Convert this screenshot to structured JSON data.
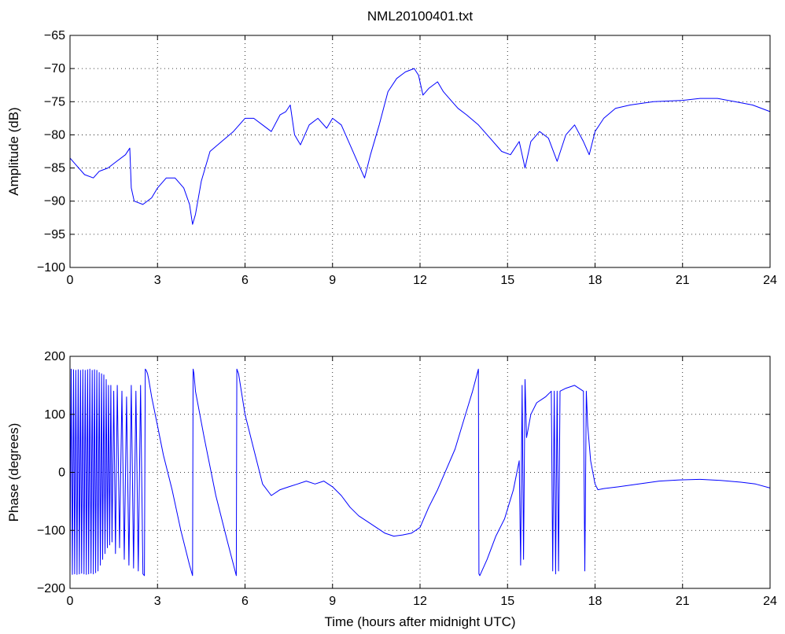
{
  "chart_data": {
    "title": "NML20100401.txt",
    "panels": [
      {
        "type": "line",
        "name": "amplitude",
        "ylabel": "Amplitude (dB)",
        "xlabel": "",
        "xlim": [
          0,
          24
        ],
        "ylim": [
          -100,
          -65
        ],
        "xticks": [
          0,
          3,
          6,
          9,
          12,
          15,
          18,
          21,
          24
        ],
        "yticks": [
          -100,
          -95,
          -90,
          -85,
          -80,
          -75,
          -70,
          -65
        ],
        "grid": true,
        "series": [
          {
            "color": "#0000ff",
            "x": [
              0,
              0.2,
              0.5,
              0.8,
              1.0,
              1.3,
              1.6,
              1.9,
              2.05,
              2.1,
              2.2,
              2.5,
              2.8,
              3.0,
              3.3,
              3.6,
              3.9,
              4.1,
              4.2,
              4.3,
              4.5,
              4.8,
              5.2,
              5.6,
              6.0,
              6.3,
              6.6,
              6.9,
              7.2,
              7.4,
              7.55,
              7.7,
              7.9,
              8.2,
              8.5,
              8.8,
              9.0,
              9.3,
              9.6,
              9.9,
              10.1,
              10.3,
              10.6,
              10.9,
              11.2,
              11.5,
              11.8,
              11.95,
              12.1,
              12.3,
              12.6,
              12.8,
              13.0,
              13.3,
              13.6,
              14.0,
              14.4,
              14.8,
              15.1,
              15.4,
              15.6,
              15.8,
              16.1,
              16.4,
              16.7,
              17.0,
              17.3,
              17.6,
              17.8,
              18.0,
              18.3,
              18.7,
              19.2,
              20.0,
              21.0,
              21.6,
              22.2,
              22.8,
              23.4,
              24.0
            ],
            "y": [
              -83.5,
              -84.5,
              -86,
              -86.5,
              -85.5,
              -85,
              -84,
              -83,
              -82,
              -88,
              -90,
              -90.5,
              -89.5,
              -88,
              -86.5,
              -86.5,
              -88,
              -90.5,
              -93.5,
              -92,
              -87,
              -82.5,
              -81,
              -79.5,
              -77.5,
              -77.5,
              -78.5,
              -79.5,
              -77,
              -76.5,
              -75.5,
              -80,
              -81.5,
              -78.5,
              -77.5,
              -79,
              -77.5,
              -78.5,
              -81.5,
              -84.5,
              -86.5,
              -83,
              -78.5,
              -73.5,
              -71.5,
              -70.5,
              -70,
              -71,
              -74,
              -73,
              -72,
              -73.5,
              -74.5,
              -76,
              -77,
              -78.5,
              -80.5,
              -82.5,
              -83,
              -81,
              -85,
              -81,
              -79.5,
              -80.5,
              -84,
              -80,
              -78.5,
              -81,
              -83,
              -79.5,
              -77.5,
              -76,
              -75.5,
              -75,
              -74.8,
              -74.5,
              -74.5,
              -75,
              -75.5,
              -76.5
            ]
          }
        ]
      },
      {
        "type": "line",
        "name": "phase",
        "ylabel": "Phase (degrees)",
        "xlabel": "Time (hours after midnight UTC)",
        "xlim": [
          0,
          24
        ],
        "ylim": [
          -200,
          200
        ],
        "xticks": [
          0,
          3,
          6,
          9,
          12,
          15,
          18,
          21,
          24
        ],
        "yticks": [
          -200,
          -100,
          0,
          100,
          200
        ],
        "grid": true,
        "series": [
          {
            "color": "#0000ff",
            "x": [
              0.0,
              0.04,
              0.08,
              0.12,
              0.16,
              0.2,
              0.24,
              0.28,
              0.32,
              0.36,
              0.4,
              0.44,
              0.48,
              0.52,
              0.56,
              0.6,
              0.64,
              0.68,
              0.72,
              0.76,
              0.8,
              0.84,
              0.88,
              0.92,
              0.96,
              1.0,
              1.04,
              1.08,
              1.12,
              1.16,
              1.2,
              1.24,
              1.28,
              1.32,
              1.36,
              1.4,
              1.44,
              1.5,
              1.56,
              1.62,
              1.7,
              1.78,
              1.86,
              1.94,
              2.02,
              2.1,
              2.18,
              2.26,
              2.34,
              2.42,
              2.5,
              2.55,
              2.58,
              2.62,
              2.66,
              2.7,
              2.8,
              3.0,
              3.2,
              3.5,
              3.8,
              4.1,
              4.2,
              4.22,
              4.25,
              4.3,
              4.6,
              5.0,
              5.4,
              5.7,
              5.72,
              5.78,
              6.0,
              6.3,
              6.6,
              6.9,
              7.2,
              7.5,
              7.8,
              8.1,
              8.4,
              8.7,
              9.0,
              9.3,
              9.6,
              9.9,
              10.2,
              10.5,
              10.8,
              11.1,
              11.4,
              11.7,
              12.0,
              12.3,
              12.6,
              12.9,
              13.2,
              13.5,
              13.8,
              14.0,
              14.02,
              14.05,
              14.3,
              14.6,
              14.9,
              15.2,
              15.4,
              15.45,
              15.5,
              15.55,
              15.6,
              15.65,
              15.8,
              16.0,
              16.3,
              16.5,
              16.55,
              16.6,
              16.65,
              16.7,
              16.75,
              16.8,
              17.0,
              17.3,
              17.6,
              17.65,
              17.7,
              17.75,
              17.85,
              18.0,
              18.1,
              18.3,
              18.8,
              19.5,
              20.2,
              20.9,
              21.6,
              22.3,
              23.0,
              23.5,
              24.0
            ],
            "y": [
              -175,
              178,
              -176,
              177,
              -175,
              176,
              -176,
              177,
              -175,
              176,
              -174,
              177,
              -175,
              176,
              -176,
              177,
              -175,
              178,
              -174,
              176,
              -175,
              177,
              -173,
              176,
              -170,
              172,
              -160,
              170,
              -150,
              168,
              -140,
              160,
              -130,
              150,
              -125,
              150,
              -120,
              140,
              -140,
              150,
              -130,
              140,
              -150,
              130,
              -160,
              150,
              -165,
              140,
              -170,
              150,
              -175,
              -178,
              178,
              175,
              170,
              160,
              130,
              80,
              30,
              -30,
              -100,
              -160,
              -178,
              178,
              170,
              140,
              60,
              -40,
              -120,
              -178,
              178,
              170,
              100,
              40,
              -20,
              -40,
              -30,
              -25,
              -20,
              -15,
              -20,
              -15,
              -25,
              -40,
              -60,
              -75,
              -85,
              -95,
              -105,
              -110,
              -108,
              -105,
              -95,
              -60,
              -30,
              5,
              40,
              90,
              140,
              178,
              -175,
              -178,
              -150,
              -110,
              -80,
              -30,
              20,
              -160,
              150,
              -150,
              160,
              60,
              100,
              120,
              130,
              140,
              -170,
              140,
              -175,
              140,
              -170,
              140,
              145,
              150,
              140,
              -170,
              140,
              80,
              20,
              -20,
              -30,
              -28,
              -25,
              -20,
              -15,
              -13,
              -12,
              -14,
              -17,
              -20,
              -27
            ]
          }
        ]
      }
    ]
  }
}
